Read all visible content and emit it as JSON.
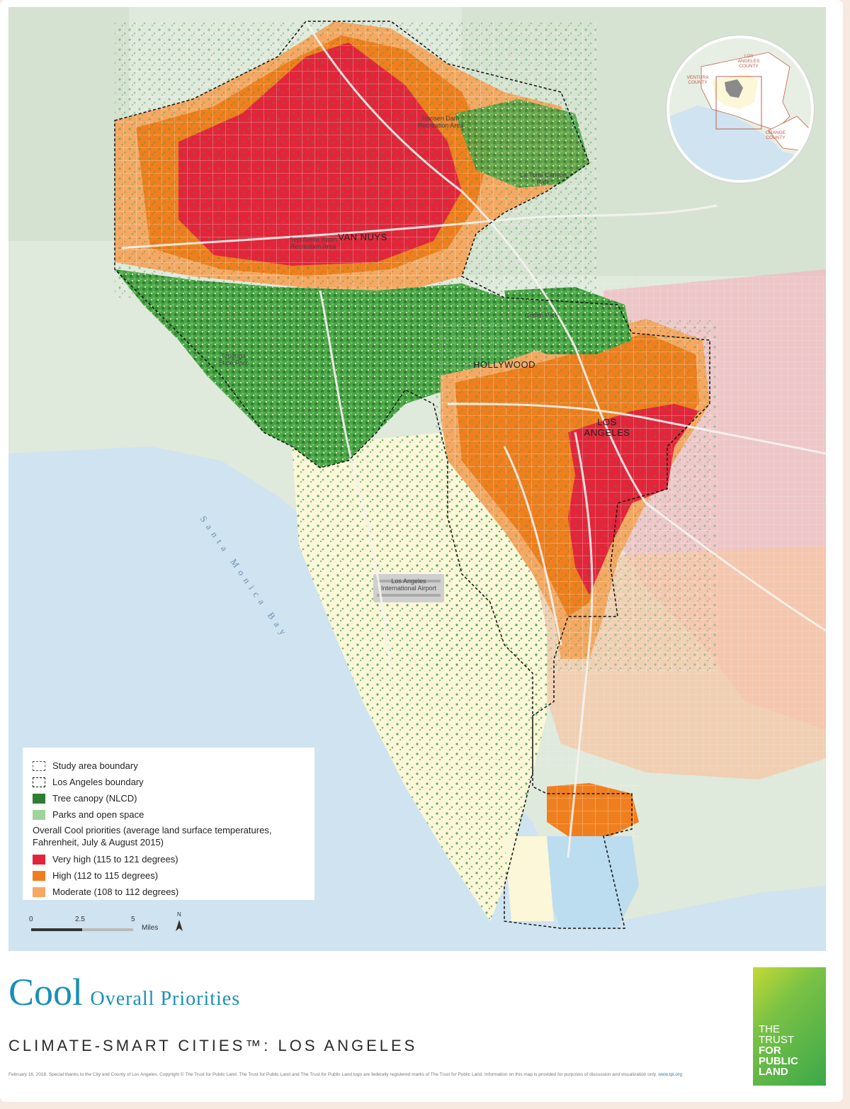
{
  "map": {
    "places": {
      "van_nuys": "VAN NUYS",
      "hollywood": "HOLLYWOOD",
      "los_angeles": "LOS ANGELES"
    },
    "features": {
      "hansen_dam": "Hansen Dam Recreation Area",
      "sepulveda": "Sepulveda Basin Recreation Area",
      "tujunga": "La Tuna Canyon Park",
      "griffith": "Griffith Park",
      "topanga": "Topanga State Park",
      "lax": "Los Angeles International Airport"
    },
    "bay": "Santa Monica Bay",
    "inset": {
      "ventura": "VENTURA COUNTY",
      "la_county": "LOS ANGELES COUNTY",
      "orange": "ORANGE COUNTY"
    }
  },
  "legend": {
    "study_area": "Study area boundary",
    "la_boundary": "Los Angeles boundary",
    "tree_canopy": "Tree canopy (NLCD)",
    "parks": "Parks and open space",
    "heading": "Overall Cool priorities (average land surface temperatures, Fahrenheit, July & August 2015)",
    "very_high": "Very high (115 to 121 degrees)",
    "high": "High (112 to 115 degrees)",
    "moderate": "Moderate (108 to 112 degrees)"
  },
  "scale": {
    "t0": "0",
    "t1": "2.5",
    "t2": "5",
    "unit": "Miles",
    "north": "N"
  },
  "title": {
    "main": "Cool",
    "sub": "Overall Priorities",
    "subtitle": "CLIMATE-SMART CITIES™: LOS ANGELES"
  },
  "footnote": {
    "text": "February 16, 2018. Special thanks to the City and County of Los Angeles. Copyright © The Trust for Public Land. The Trust for Public Land and The Trust for Public Land logo are federally registered marks of The Trust for Public Land. Information on this map is provided for purposes of discussion and visualization only.",
    "link": "www.tpl.org"
  },
  "logo": {
    "line1": "THE",
    "line2": "TRUST",
    "line3": "FOR",
    "line4": "PUBLIC",
    "line5": "LAND"
  },
  "colors": {
    "very_high": "#e3243b",
    "high": "#ef7f1e",
    "moderate": "#f5a863",
    "tree": "#3e9a3f",
    "tree_dark": "#2e7d32",
    "parks": "#9fd49a",
    "water": "#cfe3f0",
    "base": "#dfe9dc",
    "urban": "#fbf7d8",
    "pink": "#f2b9c2"
  }
}
